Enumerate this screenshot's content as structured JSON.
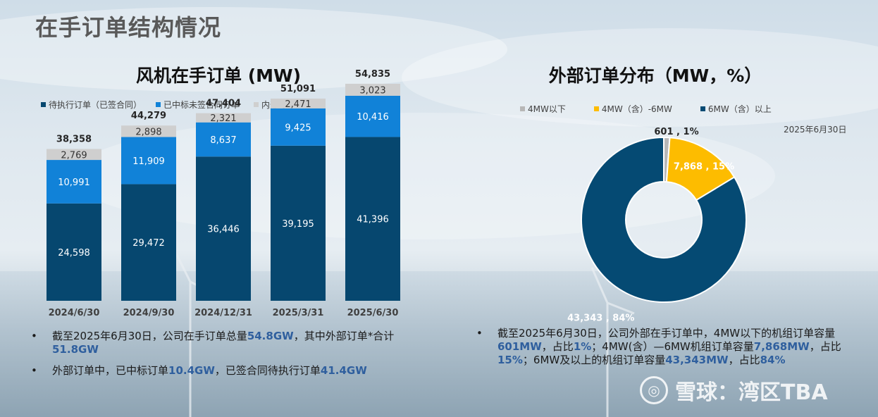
{
  "page_title": "在手订单结构情况",
  "colors": {
    "executing": "#06476f",
    "bid_won": "#1182d8",
    "internal": "#cfcfcf",
    "below4": "#b7b7b7",
    "mid": "#fdbc00",
    "above6": "#054a73"
  },
  "bar_chart": {
    "title": "风机在手订单 (MW)",
    "legend": [
      "待执行订单（已签合同）",
      "已中标未签合同订单",
      "内部订单"
    ]
  },
  "donut_chart": {
    "title": "外部订单分布（MW，%）",
    "legend": [
      "4MW以下",
      "4MW（含）-6MW",
      "6MW（含）以上"
    ],
    "date": "2025年6月30日"
  },
  "chart_data": [
    {
      "type": "bar",
      "stacked": true,
      "title": "风机在手订单 (MW)",
      "categories": [
        "2024/6/30",
        "2024/9/30",
        "2024/12/31",
        "2025/3/31",
        "2025/6/30"
      ],
      "series": [
        {
          "name": "待执行订单（已签合同）",
          "values": [
            24598,
            29472,
            36446,
            39195,
            41396
          ]
        },
        {
          "name": "已中标未签合同订单",
          "values": [
            10991,
            11909,
            8637,
            9425,
            10416
          ]
        },
        {
          "name": "内部订单",
          "values": [
            2769,
            2898,
            2321,
            2471,
            3023
          ]
        }
      ],
      "totals": [
        38358,
        44279,
        47404,
        51091,
        54835
      ],
      "value_labels": [
        "24,598",
        "29,472",
        "36,446",
        "39,195",
        "41,396",
        "10,991",
        "11,909",
        "8,637",
        "9,425",
        "10,416",
        "2,769",
        "2,898",
        "2,321",
        "2,471",
        "3,023"
      ],
      "total_labels": [
        "38,358",
        "44,279",
        "47,404",
        "51,091",
        "54,835"
      ],
      "legend_position": "top-left",
      "grid": false
    },
    {
      "type": "pie",
      "donut": true,
      "title": "外部订单分布（MW，%）",
      "labels": [
        "4MW以下",
        "4MW（含）-6MW",
        "6MW（含）以上"
      ],
      "values": [
        601,
        7868,
        43343
      ],
      "percents": [
        1,
        15,
        84
      ],
      "data_labels": [
        "601 , 1%",
        "7,868 , 15%",
        "43,343 , 84%"
      ],
      "legend_position": "top"
    }
  ],
  "left_bullets": [
    {
      "parts": [
        {
          "t": "截至2025年6月30日，公司在手订单总量",
          "hl": false
        },
        {
          "t": "54.8GW",
          "hl": true
        },
        {
          "t": "，其中外部订单*合计",
          "hl": false
        },
        {
          "t": "51.8GW",
          "hl": true
        }
      ]
    },
    {
      "parts": [
        {
          "t": "外部订单中，已中标订单",
          "hl": false
        },
        {
          "t": "10.4GW",
          "hl": true
        },
        {
          "t": "，已签合同待执行订单",
          "hl": false
        },
        {
          "t": "41.4GW",
          "hl": true
        }
      ]
    }
  ],
  "right_bullets": [
    {
      "parts": [
        {
          "t": "截至2025年6月30日，公司外部在手订单中，4MW以下的机组订单容量",
          "hl": false
        },
        {
          "t": "601MW",
          "hl": true
        },
        {
          "t": "，占比",
          "hl": false
        },
        {
          "t": "1%",
          "hl": true
        },
        {
          "t": "；4MW(含）—6MW机组订单容量",
          "hl": false
        },
        {
          "t": "7,868MW",
          "hl": true
        },
        {
          "t": "，占比",
          "hl": false
        },
        {
          "t": "15%",
          "hl": true
        },
        {
          "t": "；6MW及以上的机组订单容量",
          "hl": false
        },
        {
          "t": "43,343MW",
          "hl": true
        },
        {
          "t": "，占比",
          "hl": false
        },
        {
          "t": "84%",
          "hl": true
        }
      ]
    }
  ],
  "bullet_marker": "•",
  "watermark": {
    "logo": "◎",
    "brand": "雪球：湾区TBA"
  }
}
